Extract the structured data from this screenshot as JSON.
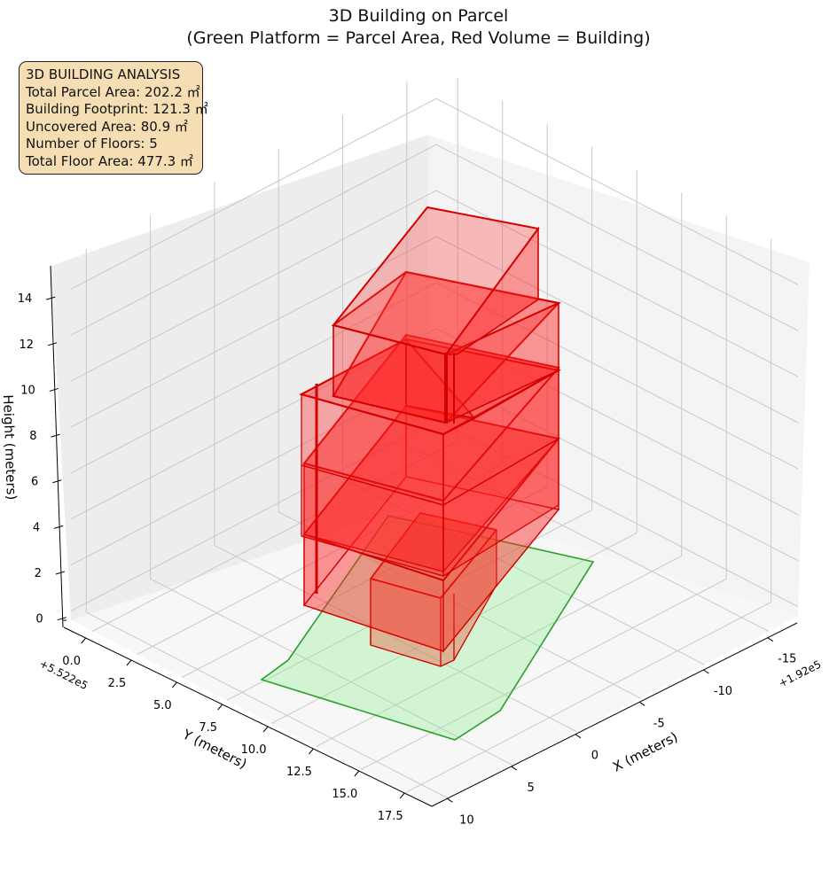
{
  "chart_data": {
    "type": "3d",
    "title": "3D Building on Parcel",
    "subtitle": "(Green Platform = Parcel Area, Red Volume = Building)",
    "xlabel": "X (meters)",
    "ylabel": "Y (meters)",
    "zlabel": "Height (meters)",
    "x_offset_label": "+1.92e5",
    "y_offset_label": "+5.522e5",
    "x_ticks": [
      "-15",
      "-10",
      "-5",
      "0",
      "5",
      "10"
    ],
    "y_ticks": [
      "0.0",
      "2.5",
      "5.0",
      "7.5",
      "10.0",
      "12.5",
      "15.0",
      "17.5"
    ],
    "z_ticks": [
      "0",
      "2",
      "4",
      "6",
      "8",
      "10",
      "12",
      "14"
    ],
    "grid": true,
    "series": [
      {
        "name": "Green Platform = Parcel Area",
        "color": "#2ca02c",
        "fill": "#90ee90"
      },
      {
        "name": "Red Volume = Building",
        "color": "#d40000",
        "fill": "#ff0000"
      }
    ],
    "stats": {
      "heading": "3D BUILDING ANALYSIS",
      "lines": [
        "Total Parcel Area: 202.2 ㎡",
        "Building Footprint: 121.3 ㎡",
        "Uncovered Area: 80.9 ㎡",
        "Number of Floors: 5",
        "Total Floor Area: 477.3 ㎡"
      ]
    }
  }
}
